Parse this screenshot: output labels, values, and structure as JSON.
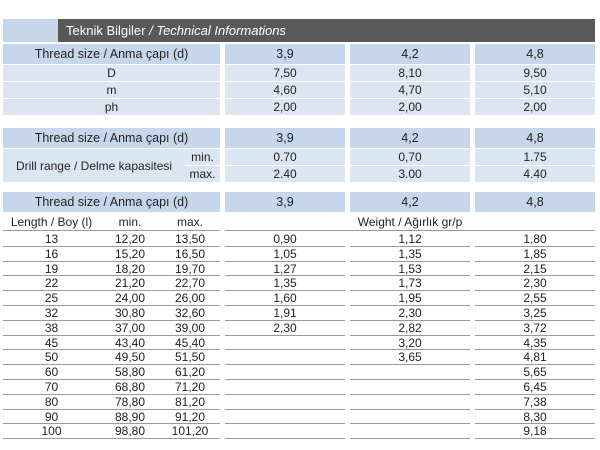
{
  "header": {
    "title": "Teknik Bilgiler",
    "subtitle": "/ Technical Informations"
  },
  "table1": {
    "header": [
      "Thread size / Anma çapı (d)",
      "3,9",
      "4,2",
      "4,8"
    ],
    "rows": [
      [
        "D",
        "7,50",
        "8,10",
        "9,50"
      ],
      [
        "m",
        "4,60",
        "4,70",
        "5,10"
      ],
      [
        "ph",
        "2,00",
        "2,00",
        "2,00"
      ]
    ]
  },
  "table2": {
    "header": [
      "Thread size / Anma çapı (d)",
      "3,9",
      "4,2",
      "4,8"
    ],
    "label": "Drill range / Delme kapasitesi",
    "rows": [
      [
        "min.",
        "0.70",
        "0,70",
        "1.75"
      ],
      [
        "max.",
        "2.40",
        "3.00",
        "4.40"
      ]
    ]
  },
  "table3": {
    "header": [
      "Thread size / Anma çapı (d)",
      "3,9",
      "4,2",
      "4,8"
    ],
    "subheader": [
      "Length / Boy (l)",
      "min.",
      "max.",
      "Weight / Ağırlık gr/p"
    ],
    "rows": [
      [
        "13",
        "12,20",
        "13,50",
        "0,90",
        "1,12",
        "1,80"
      ],
      [
        "16",
        "15,20",
        "16,50",
        "1,05",
        "1,35",
        "1,85"
      ],
      [
        "19",
        "18,20",
        "19,70",
        "1,27",
        "1,53",
        "2,15"
      ],
      [
        "22",
        "21,20",
        "22,70",
        "1,35",
        "1,73",
        "2,30"
      ],
      [
        "25",
        "24,00",
        "26,00",
        "1,60",
        "1,95",
        "2,55"
      ],
      [
        "32",
        "30,80",
        "32,60",
        "1,91",
        "2,30",
        "3,25"
      ],
      [
        "38",
        "37,00",
        "39,00",
        "2,30",
        "2,82",
        "3,72"
      ],
      [
        "45",
        "43,40",
        "45,40",
        null,
        "3,20",
        "4,35"
      ],
      [
        "50",
        "49,50",
        "51,50",
        null,
        "3,65",
        "4,81"
      ],
      [
        "60",
        "58,80",
        "61,20",
        null,
        null,
        "5,65"
      ],
      [
        "70",
        "68,80",
        "71,20",
        null,
        null,
        "6,45"
      ],
      [
        "80",
        "78,80",
        "81,20",
        null,
        null,
        "7,38"
      ],
      [
        "90",
        "88,90",
        "91,20",
        null,
        null,
        "8,30"
      ],
      [
        "100",
        "98,80",
        "101,20",
        null,
        null,
        "9,18"
      ]
    ]
  }
}
